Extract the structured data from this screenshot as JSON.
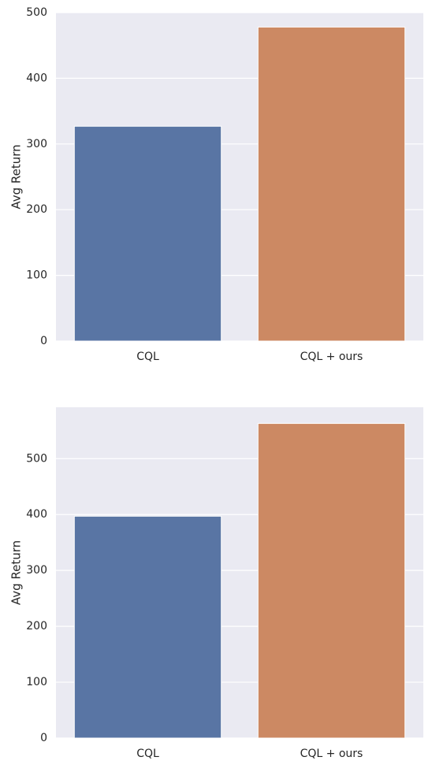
{
  "chart_data": [
    {
      "type": "bar",
      "categories": [
        "CQL",
        "CQL + ours"
      ],
      "values": [
        327,
        478
      ],
      "colors": [
        "#5975a4",
        "#cc8963"
      ],
      "title": "",
      "xlabel": "",
      "ylabel": "Avg Return",
      "ylim": [
        0,
        500
      ],
      "yticks": [
        0,
        100,
        200,
        300,
        400,
        500
      ],
      "grid": true,
      "background": "#eaeaf2"
    },
    {
      "type": "bar",
      "categories": [
        "CQL",
        "CQL + ours"
      ],
      "values": [
        397,
        563
      ],
      "colors": [
        "#5975a4",
        "#cc8963"
      ],
      "title": "",
      "xlabel": "",
      "ylabel": "Avg Return",
      "ylim": [
        0,
        592
      ],
      "yticks": [
        0,
        100,
        200,
        300,
        400,
        500
      ],
      "grid": true,
      "background": "#eaeaf2"
    }
  ]
}
